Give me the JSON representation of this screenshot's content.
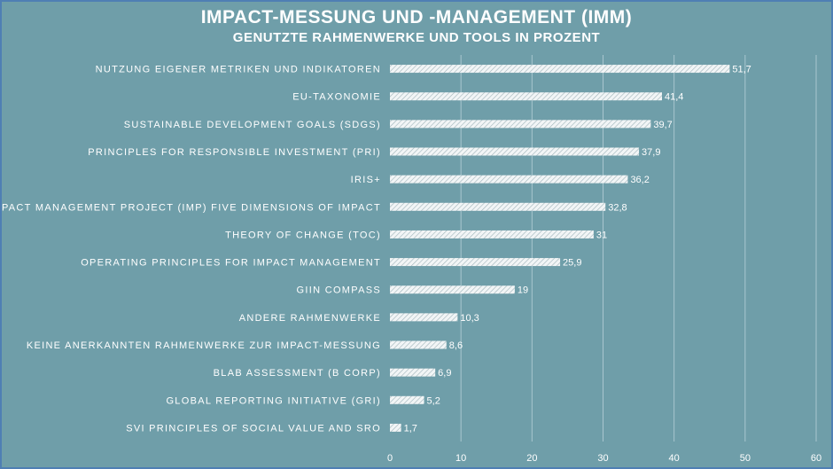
{
  "chart_data": {
    "type": "bar",
    "orientation": "horizontal",
    "title": "IMPACT-MESSUNG UND -MANAGEMENT (IMM)",
    "subtitle": "GENUTZTE RAHMENWERKE UND TOOLS IN PROZENT",
    "categories": [
      "NUTZUNG EIGENER METRIKEN UND INDIKATOREN",
      "EU-TAXONOMIE",
      "SUSTAINABLE DEVELOPMENT GOALS (SDGS)",
      "PRINCIPLES FOR RESPONSIBLE INVESTMENT (PRI)",
      "IRIS+",
      "IMPACT MANAGEMENT PROJECT (IMP) FIVE DIMENSIONS OF IMPACT",
      "THEORY OF CHANGE (TOC)",
      "OPERATING PRINCIPLES FOR IMPACT MANAGEMENT",
      "GIIN COMPASS",
      "ANDERE RAHMENWERKE",
      "KEINE ANERKANNTEN RAHMENWERKE ZUR IMPACT-MESSUNG",
      "BLAB ASSESSMENT (B CORP)",
      "GLOBAL REPORTING INITIATIVE (GRI)",
      "SVI PRINCIPLES OF SOCIAL VALUE AND SRO"
    ],
    "values": [
      51.7,
      41.4,
      39.7,
      37.9,
      36.2,
      32.8,
      31,
      25.9,
      19,
      10.3,
      8.6,
      6.9,
      5.2,
      1.7
    ],
    "value_labels": [
      "51,7",
      "41,4",
      "39,7",
      "37,9",
      "36,2",
      "32,8",
      "31",
      "25,9",
      "19",
      "10,3",
      "8,6",
      "6,9",
      "5,2",
      "1,7"
    ],
    "xlim": [
      0,
      60
    ],
    "xticks": [
      "0",
      "10",
      "20",
      "30",
      "40",
      "50",
      "60"
    ],
    "grid": true,
    "colors": {
      "background": "#6f9ea9",
      "bar": "#e8eef0",
      "grid": "#a9c7cf",
      "text": "#ffffff"
    }
  }
}
